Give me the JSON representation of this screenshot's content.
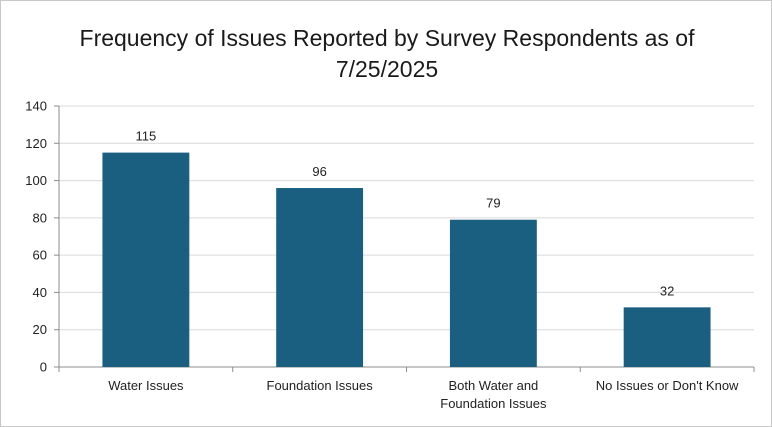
{
  "chart_data": {
    "type": "bar",
    "title": "Frequency of Issues Reported by Survey Respondents as of 7/25/2025",
    "categories": [
      [
        "Water Issues"
      ],
      [
        "Foundation Issues"
      ],
      [
        "Both Water and",
        "Foundation Issues"
      ],
      [
        "No Issues or Don't Know"
      ]
    ],
    "values": [
      115,
      96,
      79,
      32
    ],
    "data_labels": [
      "115",
      "96",
      "79",
      "32"
    ],
    "ylim": [
      0,
      140
    ],
    "yticks": [
      "0",
      "20",
      "40",
      "60",
      "80",
      "100",
      "120",
      "140"
    ],
    "xlabel": "",
    "ylabel": "",
    "grid": true,
    "legend": "none",
    "bar_color": "#1b5f80",
    "grid_color": "#d9d9d9",
    "axis_color": "#8c8c8c"
  }
}
